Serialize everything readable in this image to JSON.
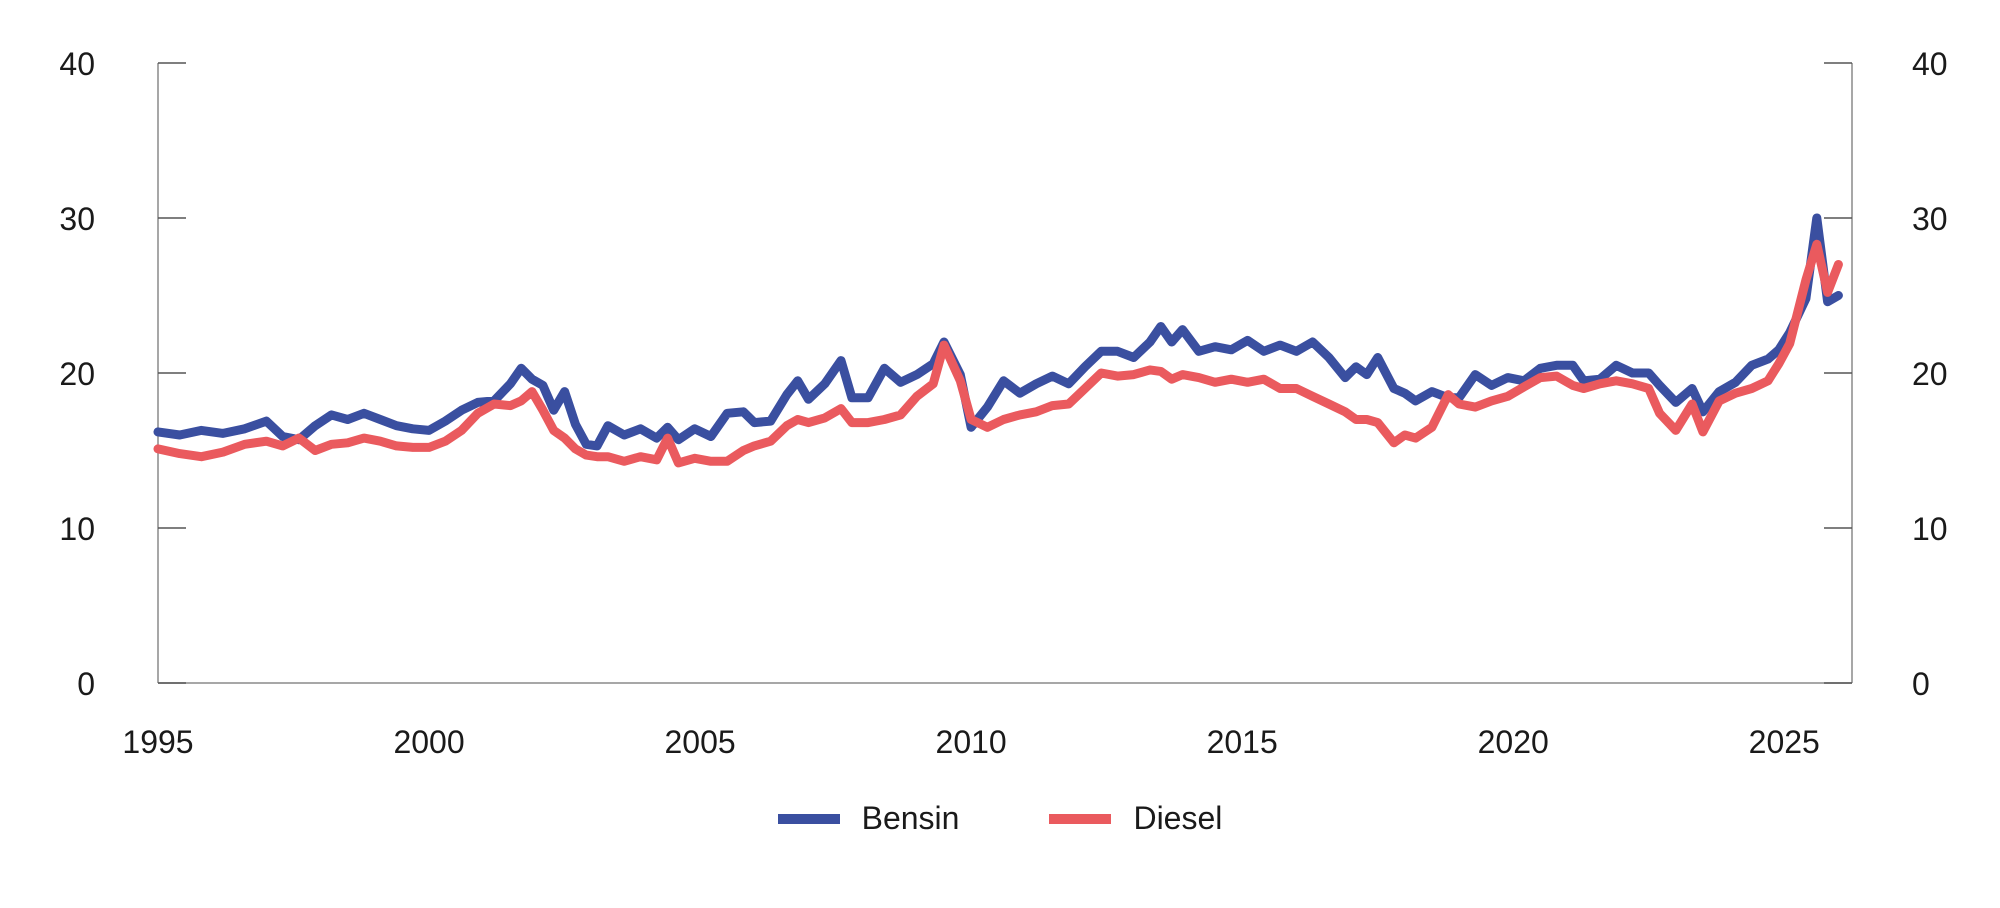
{
  "chart_data": {
    "type": "line",
    "title": "",
    "xlabel": "",
    "ylabel": "",
    "xlim": [
      1995,
      2026.25
    ],
    "ylim": [
      0,
      40
    ],
    "grid": false,
    "yticks": [
      0,
      10,
      20,
      30,
      40
    ],
    "xticks": [
      1995,
      2000,
      2005,
      2010,
      2015,
      2020,
      2025
    ],
    "y_axes": "left-and-right",
    "legend_position": "bottom-center",
    "series": [
      {
        "name": "Bensin",
        "color": "#3a4fa0",
        "points": [
          [
            1995.0,
            16.2
          ],
          [
            1995.4,
            16.0
          ],
          [
            1995.8,
            16.3
          ],
          [
            1996.2,
            16.1
          ],
          [
            1996.6,
            16.4
          ],
          [
            1997.0,
            16.9
          ],
          [
            1997.3,
            15.9
          ],
          [
            1997.6,
            15.7
          ],
          [
            1997.9,
            16.6
          ],
          [
            1998.2,
            17.3
          ],
          [
            1998.5,
            17.0
          ],
          [
            1998.8,
            17.4
          ],
          [
            1999.1,
            17.0
          ],
          [
            1999.4,
            16.6
          ],
          [
            1999.7,
            16.4
          ],
          [
            2000.0,
            16.3
          ],
          [
            2000.3,
            16.9
          ],
          [
            2000.6,
            17.6
          ],
          [
            2000.9,
            18.1
          ],
          [
            2001.2,
            18.2
          ],
          [
            2001.5,
            19.3
          ],
          [
            2001.7,
            20.3
          ],
          [
            2001.9,
            19.6
          ],
          [
            2002.1,
            19.2
          ],
          [
            2002.3,
            17.6
          ],
          [
            2002.5,
            18.8
          ],
          [
            2002.7,
            16.7
          ],
          [
            2002.9,
            15.4
          ],
          [
            2003.1,
            15.3
          ],
          [
            2003.3,
            16.6
          ],
          [
            2003.6,
            16.0
          ],
          [
            2003.9,
            16.4
          ],
          [
            2004.2,
            15.8
          ],
          [
            2004.4,
            16.5
          ],
          [
            2004.6,
            15.7
          ],
          [
            2004.9,
            16.4
          ],
          [
            2005.2,
            15.9
          ],
          [
            2005.5,
            17.4
          ],
          [
            2005.8,
            17.5
          ],
          [
            2006.0,
            16.8
          ],
          [
            2006.3,
            16.9
          ],
          [
            2006.6,
            18.6
          ],
          [
            2006.8,
            19.5
          ],
          [
            2007.0,
            18.3
          ],
          [
            2007.3,
            19.3
          ],
          [
            2007.6,
            20.8
          ],
          [
            2007.8,
            18.4
          ],
          [
            2008.1,
            18.4
          ],
          [
            2008.4,
            20.3
          ],
          [
            2008.7,
            19.4
          ],
          [
            2009.0,
            19.9
          ],
          [
            2009.3,
            20.6
          ],
          [
            2009.5,
            22.0
          ],
          [
            2009.8,
            19.9
          ],
          [
            2010.0,
            16.5
          ],
          [
            2010.3,
            17.8
          ],
          [
            2010.6,
            19.5
          ],
          [
            2010.9,
            18.7
          ],
          [
            2011.2,
            19.3
          ],
          [
            2011.5,
            19.8
          ],
          [
            2011.8,
            19.3
          ],
          [
            2012.1,
            20.4
          ],
          [
            2012.4,
            21.4
          ],
          [
            2012.7,
            21.4
          ],
          [
            2013.0,
            21.0
          ],
          [
            2013.3,
            22.0
          ],
          [
            2013.5,
            23.0
          ],
          [
            2013.7,
            22.0
          ],
          [
            2013.9,
            22.8
          ],
          [
            2014.2,
            21.4
          ],
          [
            2014.5,
            21.7
          ],
          [
            2014.8,
            21.5
          ],
          [
            2015.1,
            22.1
          ],
          [
            2015.4,
            21.4
          ],
          [
            2015.7,
            21.8
          ],
          [
            2016.0,
            21.4
          ],
          [
            2016.3,
            22.0
          ],
          [
            2016.6,
            21.0
          ],
          [
            2016.9,
            19.7
          ],
          [
            2017.1,
            20.4
          ],
          [
            2017.3,
            19.9
          ],
          [
            2017.5,
            21.0
          ],
          [
            2017.8,
            19.0
          ],
          [
            2018.0,
            18.7
          ],
          [
            2018.2,
            18.2
          ],
          [
            2018.5,
            18.8
          ],
          [
            2018.8,
            18.4
          ],
          [
            2019.0,
            18.4
          ],
          [
            2019.3,
            19.9
          ],
          [
            2019.6,
            19.2
          ],
          [
            2019.9,
            19.7
          ],
          [
            2020.2,
            19.5
          ],
          [
            2020.5,
            20.3
          ],
          [
            2020.8,
            20.5
          ],
          [
            2021.1,
            20.5
          ],
          [
            2021.3,
            19.5
          ],
          [
            2021.6,
            19.6
          ],
          [
            2021.9,
            20.5
          ],
          [
            2022.2,
            20.0
          ],
          [
            2022.5,
            20.0
          ],
          [
            2022.7,
            19.2
          ],
          [
            2023.0,
            18.1
          ],
          [
            2023.3,
            19.0
          ],
          [
            2023.5,
            17.5
          ],
          [
            2023.8,
            18.8
          ],
          [
            2024.1,
            19.4
          ],
          [
            2024.4,
            20.5
          ],
          [
            2024.7,
            20.9
          ],
          [
            2024.9,
            21.5
          ],
          [
            2025.1,
            22.6
          ],
          [
            2025.4,
            24.8
          ],
          [
            2025.6,
            30.0
          ],
          [
            2025.8,
            24.6
          ],
          [
            2026.0,
            25.0
          ]
        ]
      },
      {
        "name": "Diesel",
        "color": "#ea5a5e",
        "points": [
          [
            1995.0,
            15.1
          ],
          [
            1995.4,
            14.8
          ],
          [
            1995.8,
            14.6
          ],
          [
            1996.2,
            14.9
          ],
          [
            1996.6,
            15.4
          ],
          [
            1997.0,
            15.6
          ],
          [
            1997.3,
            15.3
          ],
          [
            1997.6,
            15.8
          ],
          [
            1997.9,
            15.0
          ],
          [
            1998.2,
            15.4
          ],
          [
            1998.5,
            15.5
          ],
          [
            1998.8,
            15.8
          ],
          [
            1999.1,
            15.6
          ],
          [
            1999.4,
            15.3
          ],
          [
            1999.7,
            15.2
          ],
          [
            2000.0,
            15.2
          ],
          [
            2000.3,
            15.6
          ],
          [
            2000.6,
            16.3
          ],
          [
            2000.9,
            17.4
          ],
          [
            2001.2,
            18.0
          ],
          [
            2001.5,
            17.9
          ],
          [
            2001.7,
            18.2
          ],
          [
            2001.9,
            18.8
          ],
          [
            2002.1,
            17.6
          ],
          [
            2002.3,
            16.3
          ],
          [
            2002.5,
            15.8
          ],
          [
            2002.7,
            15.1
          ],
          [
            2002.9,
            14.7
          ],
          [
            2003.1,
            14.6
          ],
          [
            2003.3,
            14.6
          ],
          [
            2003.6,
            14.3
          ],
          [
            2003.9,
            14.6
          ],
          [
            2004.2,
            14.4
          ],
          [
            2004.4,
            15.8
          ],
          [
            2004.6,
            14.2
          ],
          [
            2004.9,
            14.5
          ],
          [
            2005.2,
            14.3
          ],
          [
            2005.5,
            14.3
          ],
          [
            2005.8,
            15.0
          ],
          [
            2006.0,
            15.3
          ],
          [
            2006.3,
            15.6
          ],
          [
            2006.6,
            16.6
          ],
          [
            2006.8,
            17.0
          ],
          [
            2007.0,
            16.8
          ],
          [
            2007.3,
            17.1
          ],
          [
            2007.6,
            17.7
          ],
          [
            2007.8,
            16.8
          ],
          [
            2008.1,
            16.8
          ],
          [
            2008.4,
            17.0
          ],
          [
            2008.7,
            17.3
          ],
          [
            2009.0,
            18.5
          ],
          [
            2009.3,
            19.3
          ],
          [
            2009.5,
            21.8
          ],
          [
            2009.8,
            19.5
          ],
          [
            2010.0,
            17.0
          ],
          [
            2010.3,
            16.5
          ],
          [
            2010.6,
            17.0
          ],
          [
            2010.9,
            17.3
          ],
          [
            2011.2,
            17.5
          ],
          [
            2011.5,
            17.9
          ],
          [
            2011.8,
            18.0
          ],
          [
            2012.1,
            19.0
          ],
          [
            2012.4,
            20.0
          ],
          [
            2012.7,
            19.8
          ],
          [
            2013.0,
            19.9
          ],
          [
            2013.3,
            20.2
          ],
          [
            2013.5,
            20.1
          ],
          [
            2013.7,
            19.6
          ],
          [
            2013.9,
            19.9
          ],
          [
            2014.2,
            19.7
          ],
          [
            2014.5,
            19.4
          ],
          [
            2014.8,
            19.6
          ],
          [
            2015.1,
            19.4
          ],
          [
            2015.4,
            19.6
          ],
          [
            2015.7,
            19.0
          ],
          [
            2016.0,
            19.0
          ],
          [
            2016.3,
            18.5
          ],
          [
            2016.6,
            18.0
          ],
          [
            2016.9,
            17.5
          ],
          [
            2017.1,
            17.0
          ],
          [
            2017.3,
            17.0
          ],
          [
            2017.5,
            16.8
          ],
          [
            2017.8,
            15.5
          ],
          [
            2018.0,
            16.0
          ],
          [
            2018.2,
            15.8
          ],
          [
            2018.5,
            16.5
          ],
          [
            2018.8,
            18.6
          ],
          [
            2019.0,
            18.0
          ],
          [
            2019.3,
            17.8
          ],
          [
            2019.6,
            18.2
          ],
          [
            2019.9,
            18.5
          ],
          [
            2020.2,
            19.1
          ],
          [
            2020.5,
            19.7
          ],
          [
            2020.8,
            19.8
          ],
          [
            2021.1,
            19.2
          ],
          [
            2021.3,
            19.0
          ],
          [
            2021.6,
            19.3
          ],
          [
            2021.9,
            19.5
          ],
          [
            2022.2,
            19.3
          ],
          [
            2022.5,
            19.0
          ],
          [
            2022.7,
            17.4
          ],
          [
            2023.0,
            16.3
          ],
          [
            2023.3,
            18.0
          ],
          [
            2023.5,
            16.2
          ],
          [
            2023.8,
            18.2
          ],
          [
            2024.1,
            18.7
          ],
          [
            2024.4,
            19.0
          ],
          [
            2024.7,
            19.5
          ],
          [
            2024.9,
            20.6
          ],
          [
            2025.1,
            21.9
          ],
          [
            2025.4,
            26.0
          ],
          [
            2025.6,
            28.3
          ],
          [
            2025.8,
            25.2
          ],
          [
            2026.0,
            27.0
          ]
        ]
      }
    ]
  }
}
